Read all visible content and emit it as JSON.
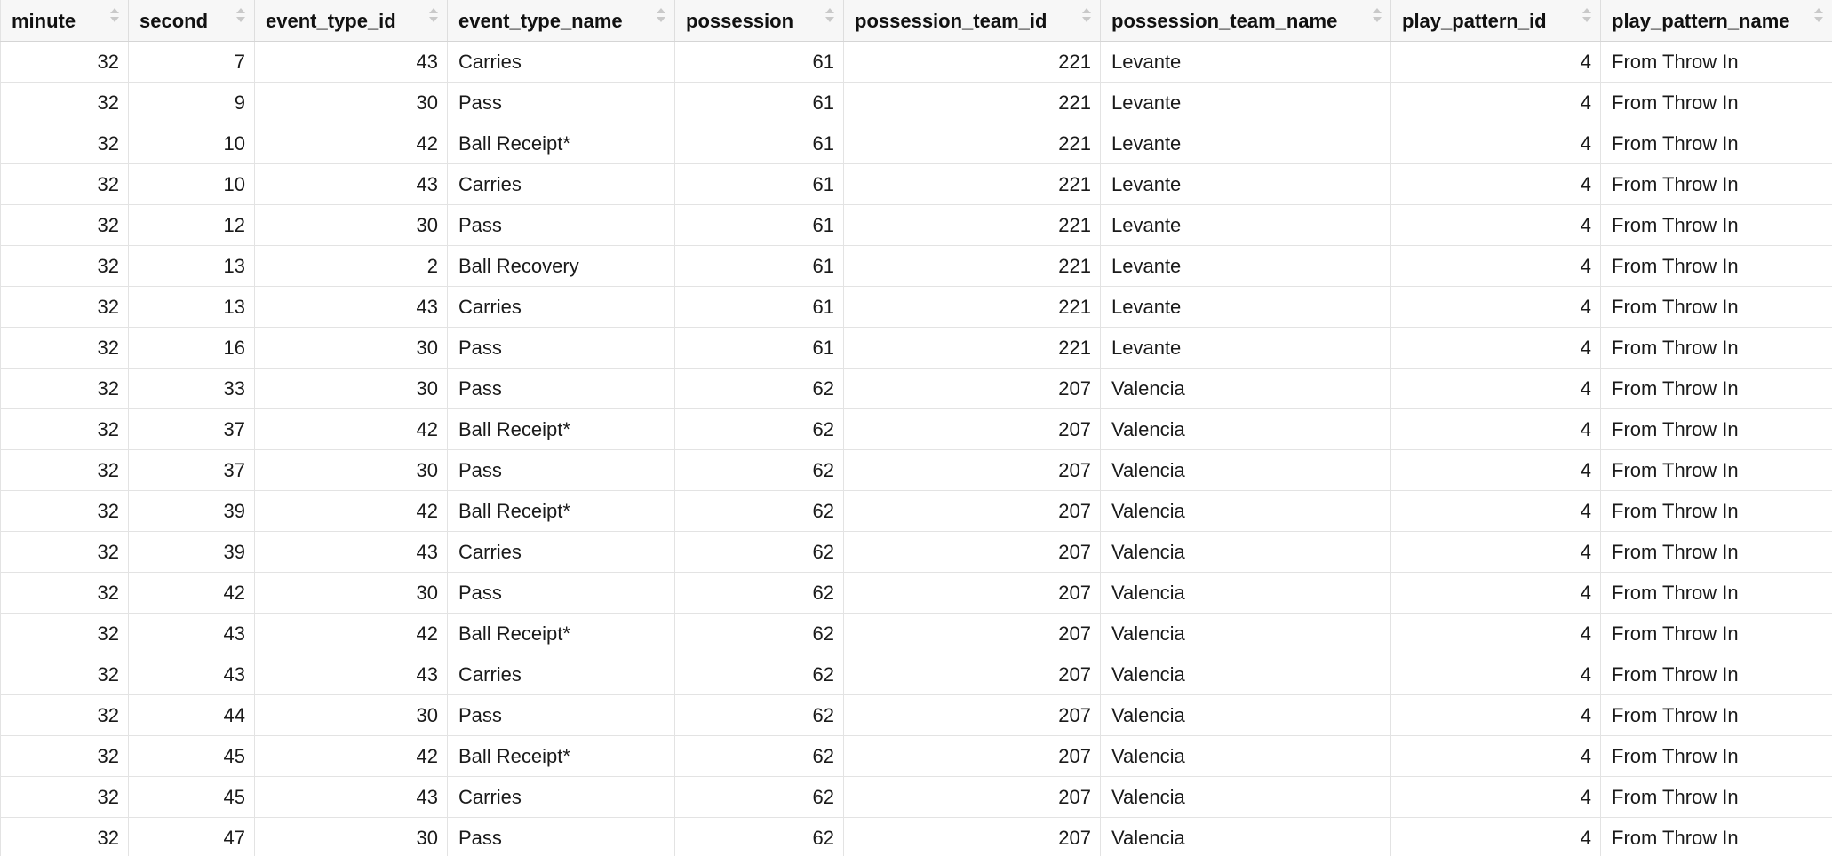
{
  "table": {
    "columns": [
      {
        "key": "minute",
        "label": "minute",
        "align": "num"
      },
      {
        "key": "second",
        "label": "second",
        "align": "num"
      },
      {
        "key": "event_type_id",
        "label": "event_type_id",
        "align": "num"
      },
      {
        "key": "event_type_name",
        "label": "event_type_name",
        "align": "txt"
      },
      {
        "key": "possession",
        "label": "possession",
        "align": "num"
      },
      {
        "key": "possession_team_id",
        "label": "possession_team_id",
        "align": "num"
      },
      {
        "key": "possession_team_name",
        "label": "possession_team_name",
        "align": "txt"
      },
      {
        "key": "play_pattern_id",
        "label": "play_pattern_id",
        "align": "num"
      },
      {
        "key": "play_pattern_name",
        "label": "play_pattern_name",
        "align": "txt"
      }
    ],
    "rows": [
      [
        "32",
        "7",
        "43",
        "Carries",
        "61",
        "221",
        "Levante",
        "4",
        "From Throw In"
      ],
      [
        "32",
        "9",
        "30",
        "Pass",
        "61",
        "221",
        "Levante",
        "4",
        "From Throw In"
      ],
      [
        "32",
        "10",
        "42",
        "Ball Receipt*",
        "61",
        "221",
        "Levante",
        "4",
        "From Throw In"
      ],
      [
        "32",
        "10",
        "43",
        "Carries",
        "61",
        "221",
        "Levante",
        "4",
        "From Throw In"
      ],
      [
        "32",
        "12",
        "30",
        "Pass",
        "61",
        "221",
        "Levante",
        "4",
        "From Throw In"
      ],
      [
        "32",
        "13",
        "2",
        "Ball Recovery",
        "61",
        "221",
        "Levante",
        "4",
        "From Throw In"
      ],
      [
        "32",
        "13",
        "43",
        "Carries",
        "61",
        "221",
        "Levante",
        "4",
        "From Throw In"
      ],
      [
        "32",
        "16",
        "30",
        "Pass",
        "61",
        "221",
        "Levante",
        "4",
        "From Throw In"
      ],
      [
        "32",
        "33",
        "30",
        "Pass",
        "62",
        "207",
        "Valencia",
        "4",
        "From Throw In"
      ],
      [
        "32",
        "37",
        "42",
        "Ball Receipt*",
        "62",
        "207",
        "Valencia",
        "4",
        "From Throw In"
      ],
      [
        "32",
        "37",
        "30",
        "Pass",
        "62",
        "207",
        "Valencia",
        "4",
        "From Throw In"
      ],
      [
        "32",
        "39",
        "42",
        "Ball Receipt*",
        "62",
        "207",
        "Valencia",
        "4",
        "From Throw In"
      ],
      [
        "32",
        "39",
        "43",
        "Carries",
        "62",
        "207",
        "Valencia",
        "4",
        "From Throw In"
      ],
      [
        "32",
        "42",
        "30",
        "Pass",
        "62",
        "207",
        "Valencia",
        "4",
        "From Throw In"
      ],
      [
        "32",
        "43",
        "42",
        "Ball Receipt*",
        "62",
        "207",
        "Valencia",
        "4",
        "From Throw In"
      ],
      [
        "32",
        "43",
        "43",
        "Carries",
        "62",
        "207",
        "Valencia",
        "4",
        "From Throw In"
      ],
      [
        "32",
        "44",
        "30",
        "Pass",
        "62",
        "207",
        "Valencia",
        "4",
        "From Throw In"
      ],
      [
        "32",
        "45",
        "42",
        "Ball Receipt*",
        "62",
        "207",
        "Valencia",
        "4",
        "From Throw In"
      ],
      [
        "32",
        "45",
        "43",
        "Carries",
        "62",
        "207",
        "Valencia",
        "4",
        "From Throw In"
      ],
      [
        "32",
        "47",
        "30",
        "Pass",
        "62",
        "207",
        "Valencia",
        "4",
        "From Throw In"
      ]
    ]
  },
  "colors": {
    "header_bg": "#f7f7f7",
    "grid_line": "#e3e3e3",
    "sort_arrow": "#c9c9c9"
  },
  "icons": {
    "sort": "sort-arrows-icon"
  }
}
